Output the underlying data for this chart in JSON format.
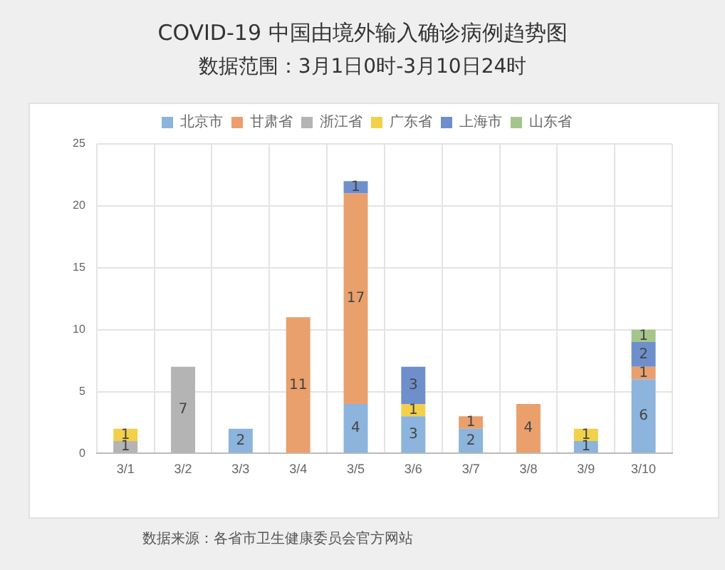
{
  "chart_data": {
    "type": "bar",
    "title": "COVID-19 中国由境外输入确诊病例趋势图",
    "subtitle": "数据范围：3月1日0时-3月10日24时",
    "annotations": [
      "数据来源：各省市卫生健康委员会官方网站"
    ],
    "categories": [
      "3/1",
      "3/2",
      "3/3",
      "3/4",
      "3/5",
      "3/6",
      "3/7",
      "3/8",
      "3/9",
      "3/10"
    ],
    "series": [
      {
        "name": "北京市",
        "color": "#8cb4dc",
        "values": [
          null,
          null,
          2,
          null,
          4,
          3,
          2,
          null,
          1,
          6
        ]
      },
      {
        "name": "甘肃省",
        "color": "#e9a06c",
        "values": [
          null,
          null,
          null,
          11,
          17,
          null,
          1,
          4,
          null,
          1
        ]
      },
      {
        "name": "浙江省",
        "color": "#b4b4b4",
        "values": [
          1,
          7,
          null,
          null,
          null,
          null,
          null,
          null,
          null,
          null
        ]
      },
      {
        "name": "广东省",
        "color": "#f2d04a",
        "values": [
          1,
          null,
          null,
          null,
          null,
          1,
          null,
          null,
          1,
          null
        ]
      },
      {
        "name": "上海市",
        "color": "#6f8fcc",
        "values": [
          null,
          null,
          null,
          null,
          1,
          3,
          null,
          null,
          null,
          2
        ]
      },
      {
        "name": "山东省",
        "color": "#a5c58a",
        "values": [
          null,
          null,
          null,
          null,
          null,
          null,
          null,
          null,
          null,
          1
        ]
      }
    ],
    "stacked": true,
    "ylim": [
      0,
      25
    ],
    "yticks": [
      0,
      5,
      10,
      15,
      20,
      25
    ],
    "grid": true,
    "legend": "top",
    "data_labels": true
  }
}
